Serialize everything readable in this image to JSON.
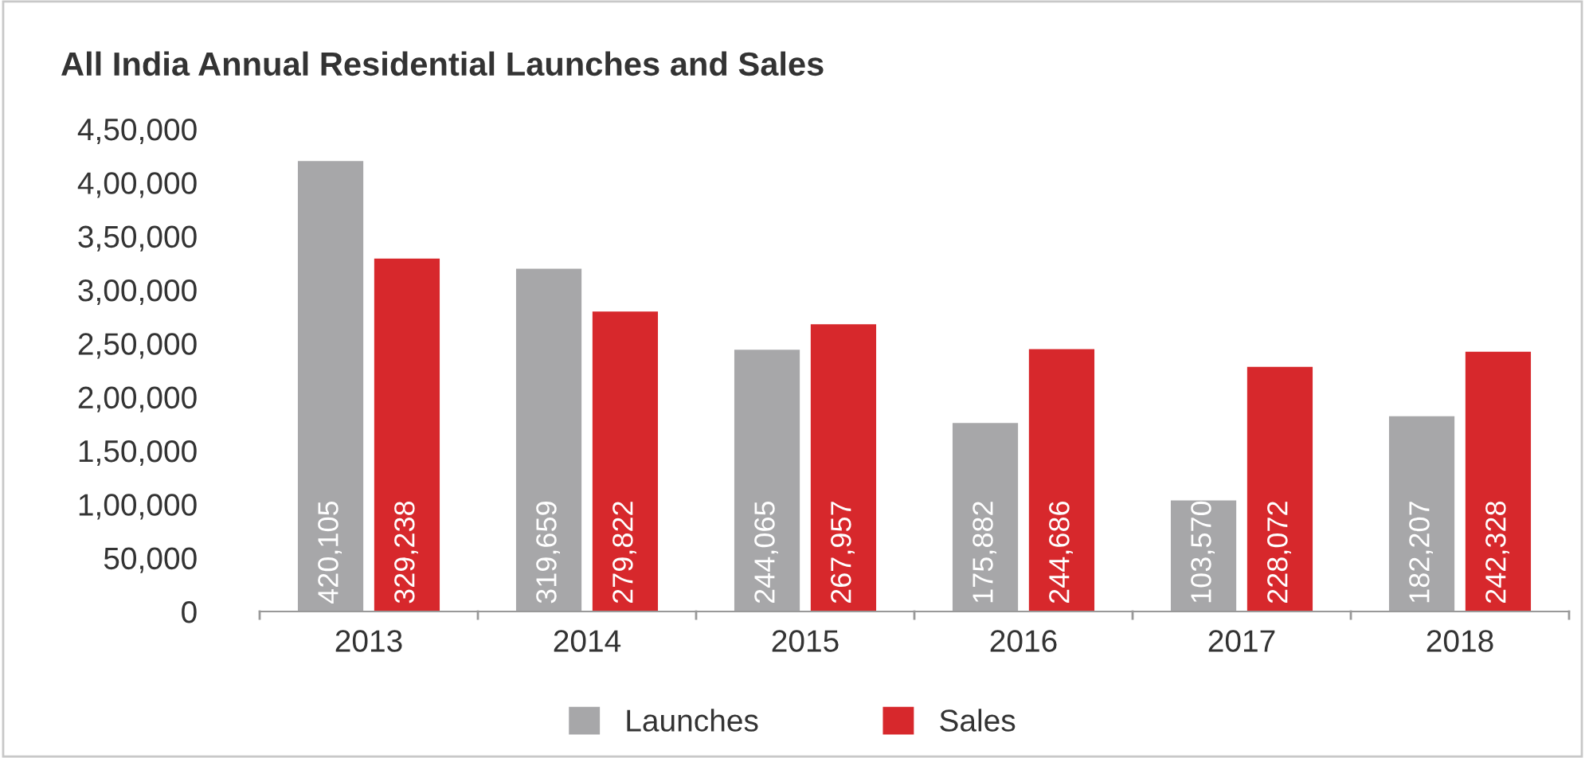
{
  "chart_data": {
    "type": "bar",
    "title": "All India Annual Residential Launches and Sales",
    "categories": [
      "2013",
      "2014",
      "2015",
      "2016",
      "2017",
      "2018"
    ],
    "series": [
      {
        "name": "Launches",
        "color": "#a7a7a9",
        "values": [
          420105,
          319659,
          244065,
          175882,
          103570,
          182207
        ]
      },
      {
        "name": "Sales",
        "color": "#d7282c",
        "values": [
          329238,
          279822,
          267957,
          244686,
          228072,
          242328
        ]
      }
    ],
    "value_labels": [
      [
        "420,105",
        "319,659",
        "244,065",
        "175,882",
        "103,570",
        "182,207"
      ],
      [
        "329,238",
        "279,822",
        "267,957",
        "244,686",
        "228,072",
        "242,328"
      ]
    ],
    "ylim": [
      0,
      450000
    ],
    "yticks": [
      0,
      {
        "value": 50000,
        "label": "50,000"
      },
      {
        "value": 100000,
        "label": "1,00,000"
      },
      {
        "value": 150000,
        "label": "1,50,000"
      },
      {
        "value": 200000,
        "label": "2,00,000"
      },
      {
        "value": 250000,
        "label": "2,50,000"
      },
      {
        "value": 300000,
        "label": "3,00,000"
      },
      {
        "value": 350000,
        "label": "3,50,000"
      },
      {
        "value": 400000,
        "label": "4,00,000"
      },
      {
        "value": 450000,
        "label": "4,50,000"
      }
    ],
    "grid": false,
    "legend": "bottom"
  }
}
